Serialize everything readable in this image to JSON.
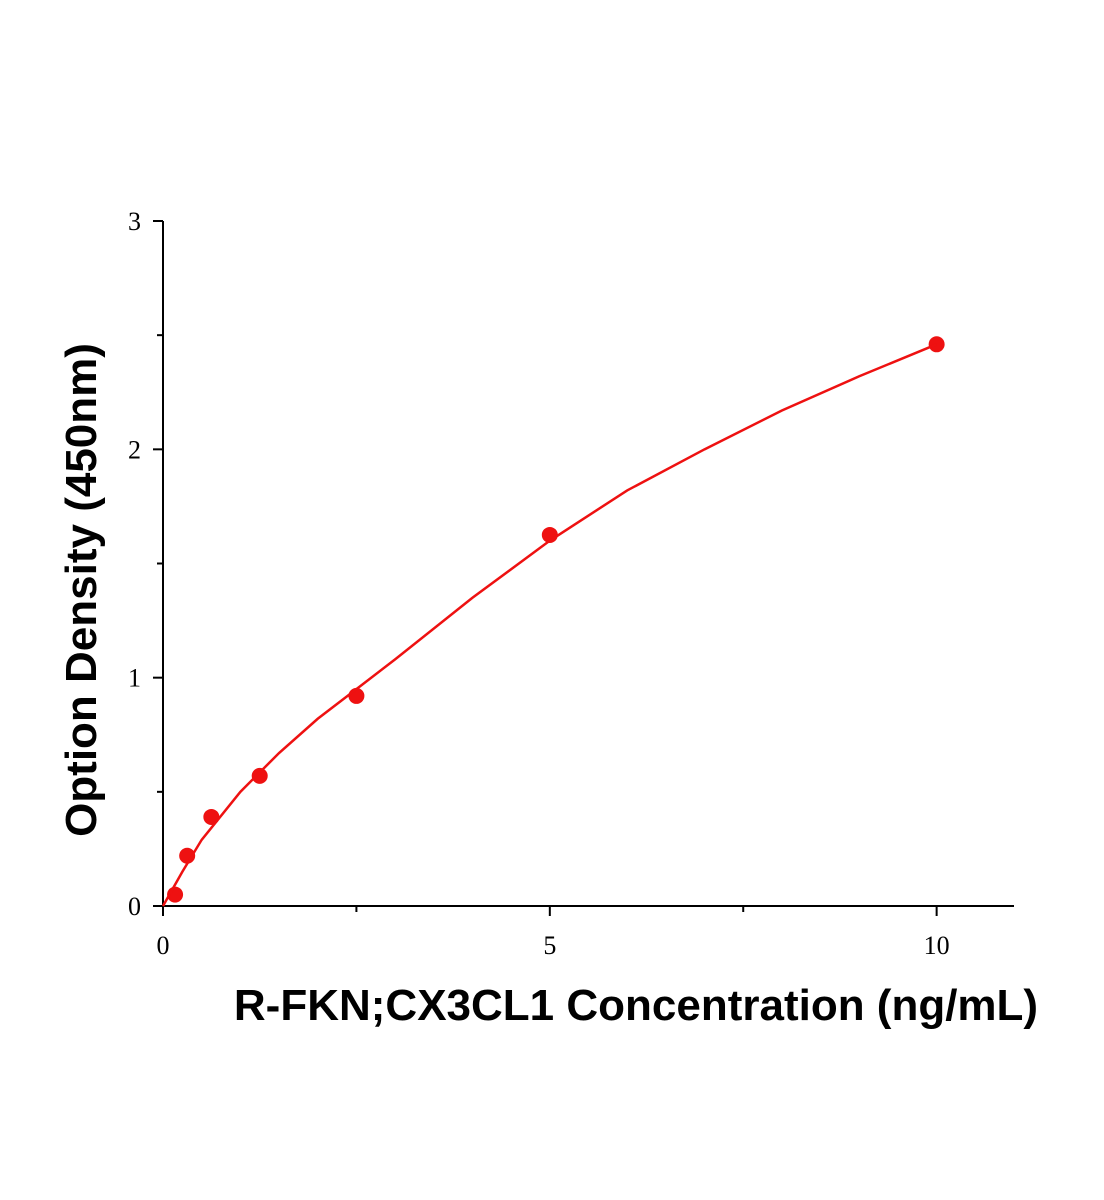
{
  "chart_data": {
    "type": "scatter",
    "x_label": "R-FKN;CX3CL1 Concentration (ng/mL)",
    "y_label": "Option Density (450nm)",
    "xlim": [
      0,
      11
    ],
    "xticks": [
      0,
      5,
      10
    ],
    "xminorticks": [
      2.5,
      7.5
    ],
    "ylim": [
      0,
      3
    ],
    "yticks": [
      0,
      1,
      2,
      3
    ],
    "yminorticks": [
      0.5,
      1.5,
      2.5
    ],
    "series": [
      {
        "type": "scatter",
        "color": "#ee1111",
        "x": [
          0.156,
          0.3125,
          0.625,
          1.25,
          2.5,
          5,
          10
        ],
        "values": [
          0.05,
          0.22,
          0.39,
          0.57,
          0.92,
          1.625,
          2.46
        ]
      },
      {
        "type": "line",
        "color": "#ee1111",
        "x": [
          0,
          0.25,
          0.5,
          1,
          1.5,
          2,
          2.5,
          3,
          4,
          5,
          6,
          7,
          8,
          9,
          10
        ],
        "values": [
          0,
          0.15,
          0.29,
          0.5,
          0.67,
          0.82,
          0.95,
          1.08,
          1.35,
          1.6,
          1.82,
          2.0,
          2.17,
          2.32,
          2.46
        ]
      }
    ]
  }
}
